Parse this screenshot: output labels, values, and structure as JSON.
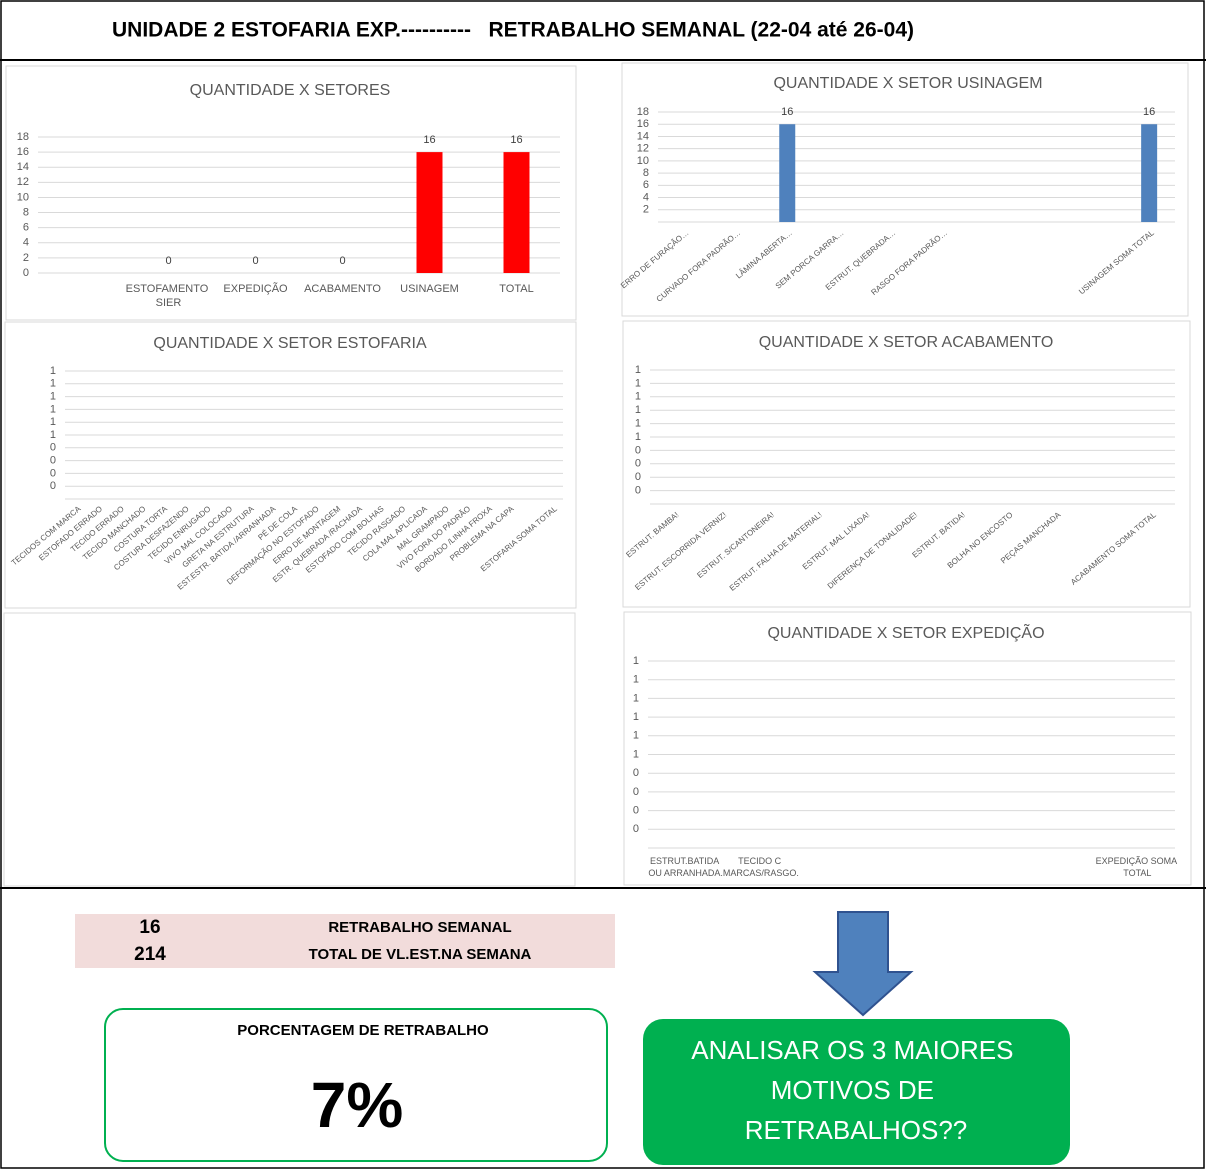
{
  "header": {
    "title": "UNIDADE 2 ESTOFARIA EXP.----------   RETRABALHO SEMANAL (22-04 até 26-04)"
  },
  "chart_data": [
    {
      "type": "bar",
      "title": "QUANTIDADE X SETORES",
      "color": "#ff0000",
      "categories": [
        null,
        "ESTOFAMENTO SIER",
        "EXPEDIÇÃO",
        "ACABAMENTO",
        "USINAGEM",
        "TOTAL"
      ],
      "values": [
        null,
        0,
        0,
        0,
        16,
        16
      ],
      "ylim": [
        0,
        18
      ],
      "yticks": [
        0,
        2,
        4,
        6,
        8,
        10,
        12,
        14,
        16,
        18
      ],
      "grid": true
    },
    {
      "type": "bar",
      "title": "QUANTIDADE X SETOR USINAGEM",
      "color": "#4f81bd",
      "categories": [
        "ERRO DE FURAÇÃO…",
        "CURVADO FORA PADRÃO…",
        "LÂMINA ABERTA…",
        "SEM PORCA GARRA…",
        "ESTRUT. QUEBRADA…",
        "RASGO FORA PADRÃO…",
        null,
        null,
        null,
        "USINAGEM SOMA TOTAL"
      ],
      "values": [
        null,
        null,
        16,
        null,
        null,
        null,
        null,
        null,
        null,
        16
      ],
      "ylim": [
        0,
        18
      ],
      "yticks": [
        2,
        4,
        6,
        8,
        10,
        12,
        14,
        16,
        18
      ],
      "grid": true
    },
    {
      "type": "bar",
      "title": "QUANTIDADE X SETOR ESTOFARIA",
      "color": "#4f81bd",
      "categories": [
        "TECIDOS COM MARCA",
        "ESTOFADO ERRADO",
        "TECIDO ERRADO",
        "TECIDO MANCHADO",
        "COSTURA TORTA",
        "COSTURA DESFAZENDO",
        "TECIDO ENRUGADO",
        "VIVO MAL COLOCADO",
        "GRETA NA ESTRUTURA",
        "EST.ESTR. BATIDA /ARRANHADA",
        "PÉ DE COLA",
        "DEFORMAÇÃO NO ESTOFADO",
        "ERRO DE MONTAGEM",
        "ESTR. QUEBRADA /RACHADA",
        "ESTOFADO COM BOLHAS",
        "TECIDO RASGADO",
        "COLA MAL APLICADA",
        "MAL GRAMPADO",
        "VIVO FORA DO PADRÃO",
        "BORDADO /LINHA FROXA",
        "PROBLEMA NA CAPA",
        null,
        "ESTOFARIA SOMA TOTAL"
      ],
      "values": [
        null,
        null,
        null,
        null,
        null,
        null,
        null,
        null,
        null,
        null,
        null,
        null,
        null,
        null,
        null,
        null,
        null,
        null,
        null,
        null,
        null,
        null,
        null
      ],
      "ylim": [
        0,
        1
      ],
      "yticks": [
        {
          "value": 0.1,
          "label": "0"
        },
        {
          "value": 0.2,
          "label": "0"
        },
        {
          "value": 0.3,
          "label": "0"
        },
        {
          "value": 0.4,
          "label": "0"
        },
        {
          "value": 0.5,
          "label": "1"
        },
        {
          "value": 0.6,
          "label": "1"
        },
        {
          "value": 0.7,
          "label": "1"
        },
        {
          "value": 0.8,
          "label": "1"
        },
        {
          "value": 0.9,
          "label": "1"
        },
        1
      ],
      "grid": true
    },
    {
      "type": "bar",
      "title": "QUANTIDADE X SETOR ACABAMENTO",
      "color": "#4f81bd",
      "categories": [
        "ESTRUT. BAMBA!",
        "ESTRUT. ESCORRIDA VERNIZ!",
        "ESTRUT. S/CANTONEIRA!",
        "ESTRUT. FALHA DE MATERIAL!",
        "ESTRUT. MAL LIXADA!",
        "DIFERENÇA DE TONALIDADE!",
        "ESTRUT. BATIDA!",
        "BOLHA NO ENCOSTO",
        "PEÇAS MANCHADA",
        null,
        "ACABAMENTO SOMA TOTAL"
      ],
      "values": [
        null,
        null,
        null,
        null,
        null,
        null,
        null,
        null,
        null,
        null,
        null
      ],
      "ylim": [
        0,
        1
      ],
      "yticks": [
        {
          "value": 0.1,
          "label": "0"
        },
        {
          "value": 0.2,
          "label": "0"
        },
        {
          "value": 0.3,
          "label": "0"
        },
        {
          "value": 0.4,
          "label": "0"
        },
        {
          "value": 0.5,
          "label": "1"
        },
        {
          "value": 0.6,
          "label": "1"
        },
        {
          "value": 0.7,
          "label": "1"
        },
        {
          "value": 0.8,
          "label": "1"
        },
        {
          "value": 0.9,
          "label": "1"
        },
        1
      ],
      "grid": true
    },
    {
      "type": "bar",
      "title": "QUANTIDADE X SETOR EXPEDIÇÃO",
      "color": "#4f81bd",
      "categories": [
        "ESTRUT.BATIDA OU ARRANHADA.",
        "TECIDO C MARCAS/RASGO.",
        null,
        null,
        null,
        null,
        "EXPEDIÇÃO SOMA TOTAL"
      ],
      "values": [
        null,
        null,
        null,
        null,
        null,
        null,
        null
      ],
      "ylim": [
        0,
        1
      ],
      "yticks": [
        {
          "value": 0.1,
          "label": "0"
        },
        {
          "value": 0.2,
          "label": "0"
        },
        {
          "value": 0.3,
          "label": "0"
        },
        {
          "value": 0.4,
          "label": "0"
        },
        {
          "value": 0.5,
          "label": "1"
        },
        {
          "value": 0.6,
          "label": "1"
        },
        {
          "value": 0.7,
          "label": "1"
        },
        {
          "value": 0.8,
          "label": "1"
        },
        {
          "value": 0.9,
          "label": "1"
        },
        1
      ],
      "grid": true
    }
  ],
  "summary": {
    "rows": [
      {
        "value": 16,
        "label": "RETRABALHO SEMANAL"
      },
      {
        "value": 214,
        "label": "TOTAL DE VL.EST.NA SEMANA"
      }
    ]
  },
  "percentage": {
    "label": "PORCENTAGEM DE RETRABALHO",
    "value": "7%"
  },
  "callout": {
    "text": "ANALISAR OS 3 MAIORES MOTIVOS DE RETRABALHOS??"
  }
}
